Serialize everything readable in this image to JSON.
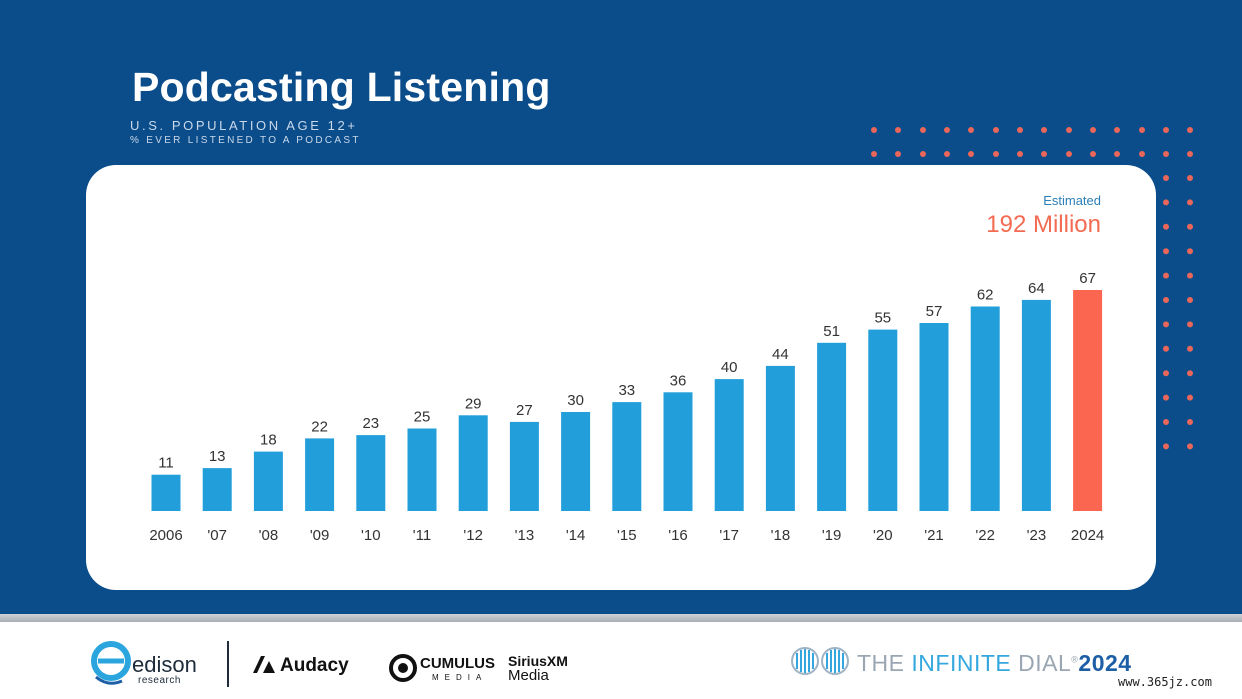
{
  "header": {
    "title": "Podcasting Listening",
    "subtitle": "U.S. POPULATION AGE 12+",
    "subtitle2": "% EVER LISTENED TO A PODCAST"
  },
  "annotation": {
    "estimated_label": "Estimated",
    "estimated_value": "192 Million"
  },
  "chart_data": {
    "type": "bar",
    "title": "Podcasting Listening",
    "subtitle": "U.S. POPULATION AGE 12+ / % EVER LISTENED TO A PODCAST",
    "categories": [
      "2006",
      "'07",
      "'08",
      "'09",
      "'10",
      "'11",
      "'12",
      "'13",
      "'14",
      "'15",
      "'16",
      "'17",
      "'18",
      "'19",
      "'20",
      "'21",
      "'22",
      "'23",
      "2024"
    ],
    "values": [
      11,
      13,
      18,
      22,
      23,
      25,
      29,
      27,
      30,
      33,
      36,
      40,
      44,
      51,
      55,
      57,
      62,
      64,
      67
    ],
    "highlight_index": 18,
    "colors": {
      "bar": "#229fda",
      "highlight": "#fb6650"
    },
    "xlabel": "",
    "ylabel": "",
    "ylim": [
      0,
      67
    ],
    "data_labels": true,
    "grid": false
  },
  "footer": {
    "edison": {
      "name": "edison",
      "sub": "research"
    },
    "audacy": "Audacy",
    "cumulus": {
      "name": "CUMULUS",
      "sub": "MEDIA"
    },
    "siriusxm": {
      "name": "SiriusXM",
      "sub": "Media"
    },
    "infinite_dial": {
      "prefix": "THE ",
      "highlight": "INFINITE",
      "middle": " DIAL",
      "year": "2024"
    }
  },
  "watermark": "www.365jz.com",
  "colors": {
    "background": "#0b4d8a",
    "accent_orange": "#f26b52",
    "dots": "#e8665a"
  }
}
